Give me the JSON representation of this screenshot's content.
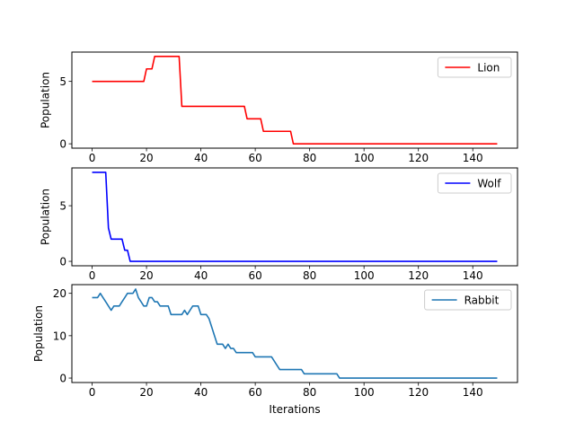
{
  "chart_data": [
    {
      "type": "line",
      "xlabel": "",
      "ylabel": "Population",
      "xlim": [
        -7.45,
        156.45
      ],
      "ylim": [
        -0.35,
        7.35
      ],
      "xticks": [
        0,
        20,
        40,
        60,
        80,
        100,
        120,
        140
      ],
      "yticks": [
        0,
        5
      ],
      "grid": false,
      "legend_position": "top-right",
      "series": [
        {
          "name": "Lion",
          "color": "#ff0000",
          "points": [
            [
              0,
              5
            ],
            [
              19,
              5
            ],
            [
              20,
              6
            ],
            [
              22,
              6
            ],
            [
              23,
              7
            ],
            [
              32,
              7
            ],
            [
              33,
              3
            ],
            [
              56,
              3
            ],
            [
              57,
              2
            ],
            [
              62,
              2
            ],
            [
              63,
              1
            ],
            [
              73,
              1
            ],
            [
              74,
              0
            ],
            [
              149,
              0
            ]
          ]
        }
      ]
    },
    {
      "type": "line",
      "xlabel": "",
      "ylabel": "Population",
      "xlim": [
        -7.45,
        156.45
      ],
      "ylim": [
        -0.4,
        8.4
      ],
      "xticks": [
        0,
        20,
        40,
        60,
        80,
        100,
        120,
        140
      ],
      "yticks": [
        0,
        5
      ],
      "grid": false,
      "legend_position": "top-right",
      "series": [
        {
          "name": "Wolf",
          "color": "#0000ff",
          "points": [
            [
              0,
              8
            ],
            [
              5,
              8
            ],
            [
              6,
              3
            ],
            [
              7,
              2
            ],
            [
              11,
              2
            ],
            [
              12,
              1
            ],
            [
              13,
              1
            ],
            [
              14,
              0
            ],
            [
              149,
              0
            ]
          ]
        }
      ]
    },
    {
      "type": "line",
      "xlabel": "Iterations",
      "ylabel": "Population",
      "xlim": [
        -7.45,
        156.45
      ],
      "ylim": [
        -1.05,
        22.05
      ],
      "xticks": [
        0,
        20,
        40,
        60,
        80,
        100,
        120,
        140
      ],
      "yticks": [
        0,
        10,
        20
      ],
      "grid": false,
      "legend_position": "top-right",
      "series": [
        {
          "name": "Rabbit",
          "color": "#1f77b4",
          "points": [
            [
              0,
              19
            ],
            [
              2,
              19
            ],
            [
              3,
              20
            ],
            [
              4,
              19
            ],
            [
              5,
              18
            ],
            [
              6,
              17
            ],
            [
              7,
              16
            ],
            [
              8,
              17
            ],
            [
              10,
              17
            ],
            [
              11,
              18
            ],
            [
              12,
              19
            ],
            [
              13,
              20
            ],
            [
              15,
              20
            ],
            [
              16,
              21
            ],
            [
              17,
              19
            ],
            [
              18,
              18
            ],
            [
              19,
              17
            ],
            [
              20,
              17
            ],
            [
              21,
              19
            ],
            [
              22,
              19
            ],
            [
              23,
              18
            ],
            [
              24,
              18
            ],
            [
              25,
              17
            ],
            [
              28,
              17
            ],
            [
              29,
              15
            ],
            [
              33,
              15
            ],
            [
              34,
              16
            ],
            [
              35,
              15
            ],
            [
              36,
              16
            ],
            [
              37,
              17
            ],
            [
              39,
              17
            ],
            [
              40,
              15
            ],
            [
              42,
              15
            ],
            [
              43,
              14
            ],
            [
              44,
              12
            ],
            [
              45,
              10
            ],
            [
              46,
              8
            ],
            [
              48,
              8
            ],
            [
              49,
              7
            ],
            [
              50,
              8
            ],
            [
              51,
              7
            ],
            [
              52,
              7
            ],
            [
              53,
              6
            ],
            [
              59,
              6
            ],
            [
              60,
              5
            ],
            [
              66,
              5
            ],
            [
              67,
              4
            ],
            [
              68,
              3
            ],
            [
              69,
              2
            ],
            [
              77,
              2
            ],
            [
              78,
              1
            ],
            [
              90,
              1
            ],
            [
              91,
              0
            ],
            [
              149,
              0
            ]
          ]
        }
      ]
    }
  ]
}
